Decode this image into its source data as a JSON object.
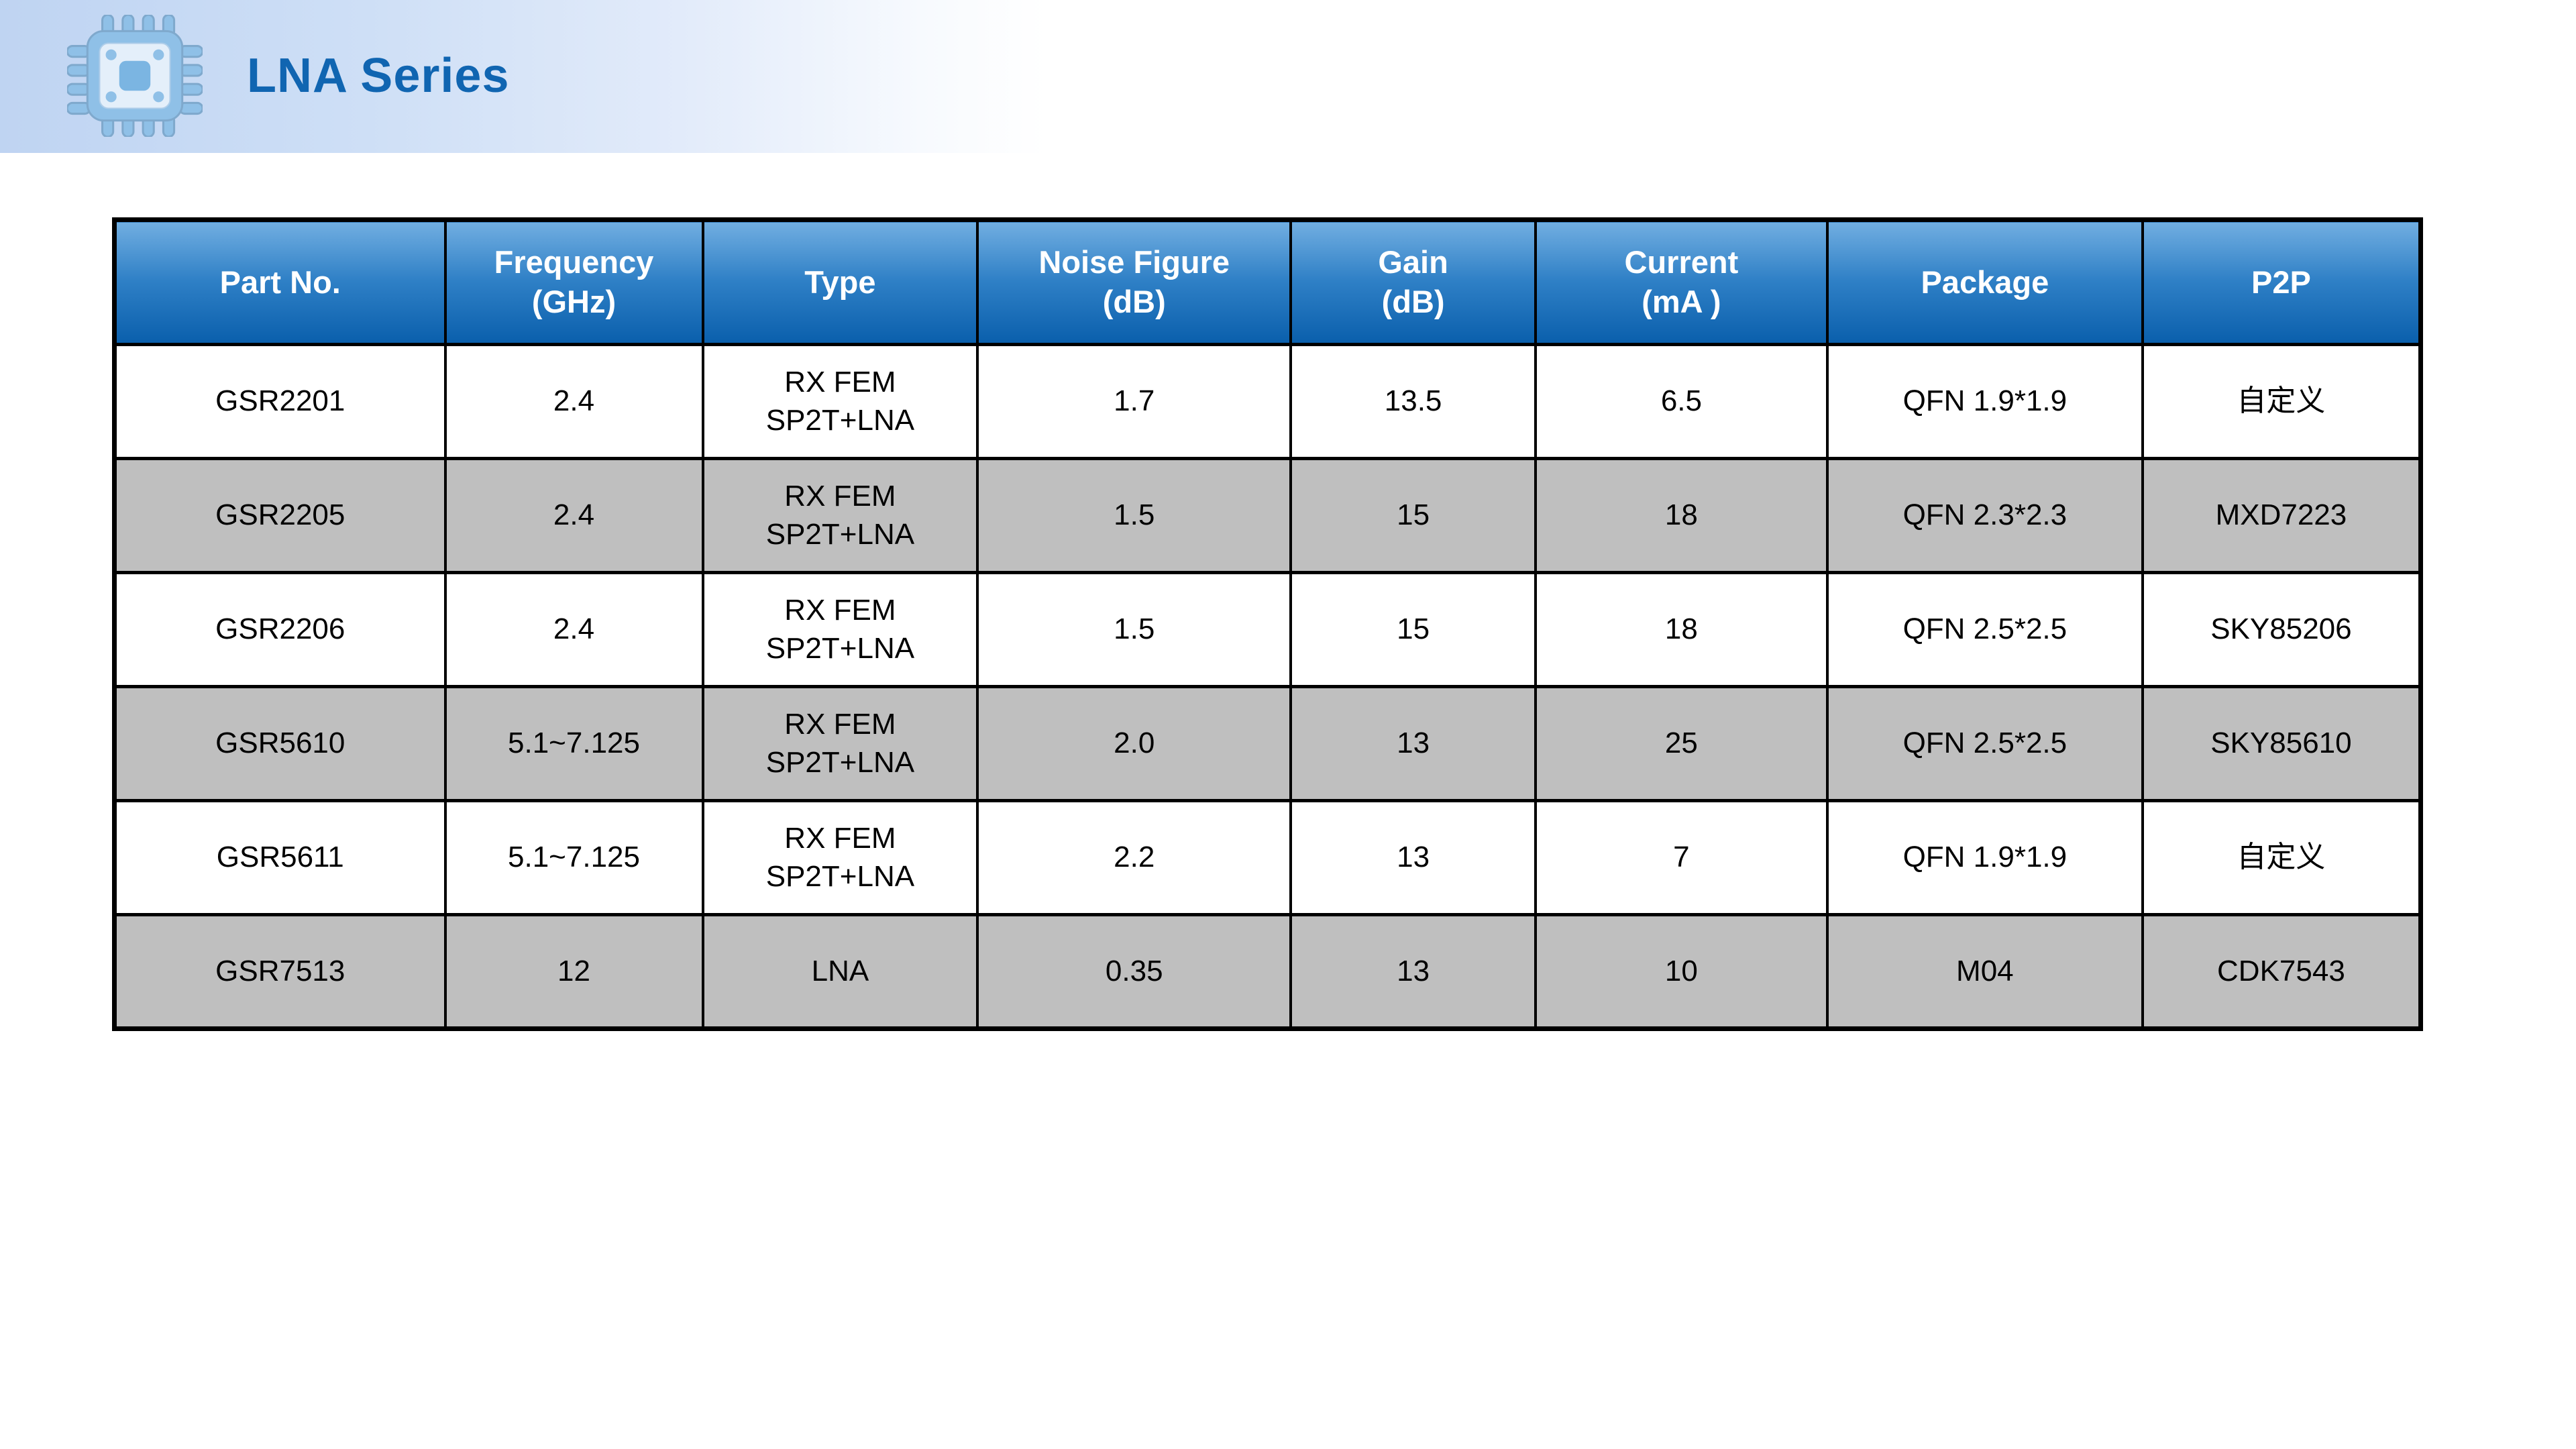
{
  "header": {
    "title": "LNA Series",
    "icon": "chip-icon"
  },
  "colors": {
    "title_blue": "#1065B1",
    "banner_blue": "#C2D6F3",
    "table_header_gradient_top": "#71AEE1",
    "table_header_gradient_bottom": "#0A5FAC",
    "row_shaded_gray": "#BFBFBF",
    "row_plain_white": "#FFFFFF",
    "border_black": "#000000",
    "chip_icon_blue": "#8FC0E7"
  },
  "table": {
    "columns": [
      {
        "label": "Part No."
      },
      {
        "label": "Frequency\n(GHz)"
      },
      {
        "label": "Type"
      },
      {
        "label": "Noise Figure\n(dB)"
      },
      {
        "label": "Gain\n(dB)"
      },
      {
        "label": "Current\n(mA )"
      },
      {
        "label": "Package"
      },
      {
        "label": "P2P"
      }
    ],
    "column_widths_pct": [
      14.34,
      11.17,
      11.92,
      13.58,
      10.61,
      12.65,
      13.67,
      12.06
    ],
    "rows": [
      {
        "shaded": false,
        "cells": [
          "GSR2201",
          "2.4",
          "RX FEM\nSP2T+LNA",
          "1.7",
          "13.5",
          "6.5",
          "QFN 1.9*1.9",
          "自定义"
        ]
      },
      {
        "shaded": true,
        "cells": [
          "GSR2205",
          "2.4",
          "RX FEM\nSP2T+LNA",
          "1.5",
          "15",
          "18",
          "QFN 2.3*2.3",
          "MXD7223"
        ]
      },
      {
        "shaded": false,
        "cells": [
          "GSR2206",
          "2.4",
          "RX FEM\nSP2T+LNA",
          "1.5",
          "15",
          "18",
          "QFN 2.5*2.5",
          "SKY85206"
        ]
      },
      {
        "shaded": true,
        "cells": [
          "GSR5610",
          "5.1~7.125",
          "RX FEM\nSP2T+LNA",
          "2.0",
          "13",
          "25",
          "QFN 2.5*2.5",
          "SKY85610"
        ]
      },
      {
        "shaded": false,
        "cells": [
          "GSR5611",
          "5.1~7.125",
          "RX FEM\nSP2T+LNA",
          "2.2",
          "13",
          "7",
          "QFN 1.9*1.9",
          "自定义"
        ]
      },
      {
        "shaded": true,
        "cells": [
          "GSR7513",
          "12",
          "LNA",
          "0.35",
          "13",
          "10",
          "M04",
          "CDK7543"
        ]
      }
    ]
  }
}
